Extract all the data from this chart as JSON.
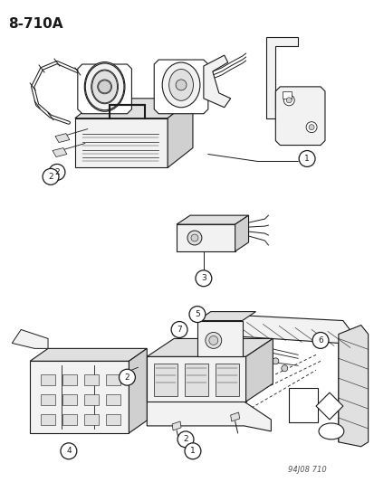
{
  "title_text": "8-710A",
  "watermark": "94J08 710",
  "background_color": "#ffffff",
  "line_color": "#1a1a1a",
  "fig_width": 4.14,
  "fig_height": 5.33,
  "dpi": 100
}
